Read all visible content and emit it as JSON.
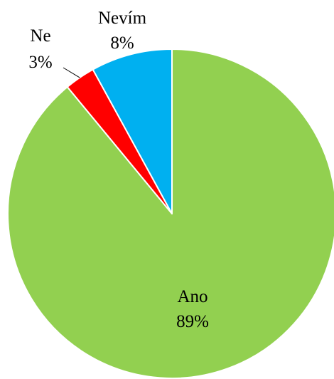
{
  "chart_data": {
    "type": "pie",
    "title": "",
    "start_angle": "12 o'clock",
    "direction": "clockwise",
    "legend": "none",
    "slices": [
      {
        "name": "Ano",
        "value": 89,
        "label": "89%",
        "color": "#92D050"
      },
      {
        "name": "Ne",
        "value": 3,
        "label": "3%",
        "color": "#FF0000"
      },
      {
        "name": "Nevím",
        "value": 8,
        "label": "8%",
        "color": "#00B0F0"
      }
    ]
  }
}
